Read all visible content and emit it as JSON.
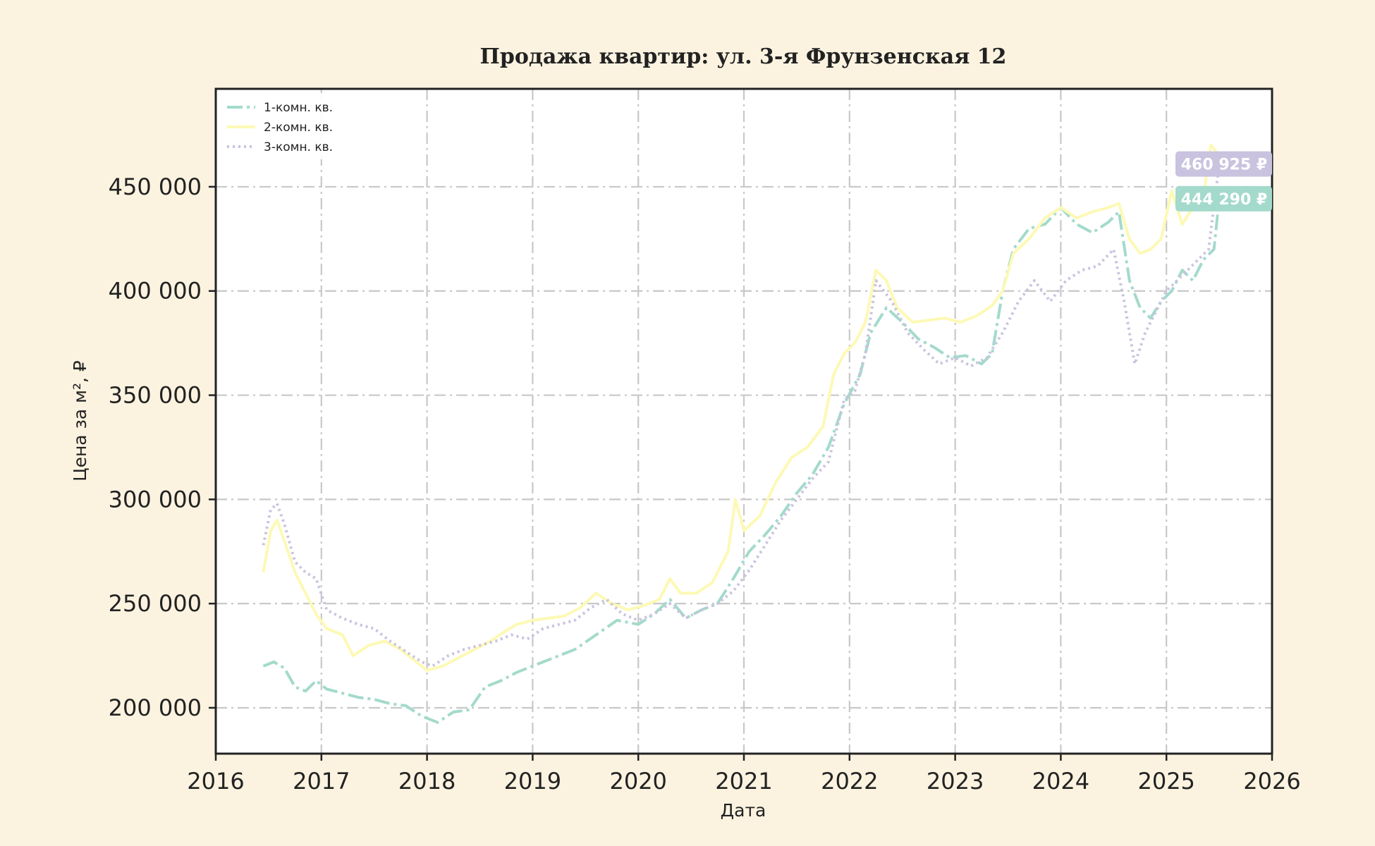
{
  "chart_data": {
    "type": "line",
    "title": "Продажа квартир: ул. 3-я Фрунзенская 12",
    "xlabel": "Дата",
    "ylabel": "Цена за м², ₽",
    "xlim": [
      2016.0,
      2026.0
    ],
    "ylim": [
      178000,
      497000
    ],
    "x_ticks": [
      2016,
      2017,
      2018,
      2019,
      2020,
      2021,
      2022,
      2023,
      2024,
      2025,
      2026
    ],
    "x_tick_labels": [
      "2016",
      "2017",
      "2018",
      "2019",
      "2020",
      "2021",
      "2022",
      "2023",
      "2024",
      "2025",
      "2026"
    ],
    "y_ticks": [
      200000,
      250000,
      300000,
      350000,
      400000,
      450000
    ],
    "y_tick_labels": [
      "200 000",
      "250 000",
      "300 000",
      "350 000",
      "400 000",
      "450 000"
    ],
    "grid": true,
    "legend_position": "top-left",
    "series": [
      {
        "name": "1-комн. кв.",
        "color": "#a3dacb",
        "dash": "dashdot",
        "x": [
          2016.45,
          2016.55,
          2016.65,
          2016.75,
          2016.85,
          2016.95,
          2017.05,
          2017.2,
          2017.35,
          2017.5,
          2017.65,
          2017.8,
          2017.95,
          2018.1,
          2018.25,
          2018.4,
          2018.55,
          2018.7,
          2018.85,
          2019.0,
          2019.2,
          2019.4,
          2019.6,
          2019.8,
          2020.0,
          2020.15,
          2020.3,
          2020.45,
          2020.6,
          2020.75,
          2020.9,
          2021.05,
          2021.2,
          2021.35,
          2021.5,
          2021.65,
          2021.8,
          2021.95,
          2022.1,
          2022.2,
          2022.35,
          2022.5,
          2022.65,
          2022.8,
          2022.95,
          2023.1,
          2023.25,
          2023.35,
          2023.45,
          2023.55,
          2023.7,
          2023.85,
          2024.0,
          2024.15,
          2024.3,
          2024.45,
          2024.55,
          2024.65,
          2024.75,
          2024.85,
          2024.95,
          2025.05,
          2025.15,
          2025.25,
          2025.35,
          2025.45,
          2025.5
        ],
        "y": [
          220000,
          222000,
          219000,
          210000,
          208000,
          213000,
          209000,
          207000,
          205000,
          204000,
          202000,
          201000,
          196000,
          193000,
          198000,
          199000,
          210000,
          213000,
          217000,
          220000,
          224000,
          228000,
          235000,
          242000,
          240000,
          245000,
          252000,
          243000,
          247000,
          250000,
          262000,
          275000,
          283000,
          292000,
          303000,
          312000,
          325000,
          346000,
          360000,
          380000,
          392000,
          385000,
          377000,
          373000,
          368000,
          369000,
          365000,
          370000,
          400000,
          420000,
          430000,
          432000,
          440000,
          432000,
          428000,
          433000,
          438000,
          405000,
          392000,
          387000,
          395000,
          400000,
          410000,
          405000,
          415000,
          420000,
          444290
        ],
        "end_label": "444 290 ₽"
      },
      {
        "name": "2-комн. кв.",
        "color": "#fdf9b5",
        "dash": "solid",
        "x": [
          2016.45,
          2016.52,
          2016.58,
          2016.65,
          2016.75,
          2016.85,
          2016.95,
          2017.05,
          2017.2,
          2017.3,
          2017.45,
          2017.6,
          2017.75,
          2017.9,
          2018.0,
          2018.15,
          2018.3,
          2018.45,
          2018.6,
          2018.75,
          2018.85,
          2019.0,
          2019.15,
          2019.3,
          2019.45,
          2019.6,
          2019.75,
          2019.9,
          2020.05,
          2020.2,
          2020.3,
          2020.4,
          2020.55,
          2020.7,
          2020.85,
          2020.92,
          2021.0,
          2021.15,
          2021.3,
          2021.45,
          2021.6,
          2021.75,
          2021.85,
          2021.95,
          2022.05,
          2022.15,
          2022.25,
          2022.35,
          2022.45,
          2022.6,
          2022.75,
          2022.9,
          2023.05,
          2023.2,
          2023.35,
          2023.45,
          2023.55,
          2023.7,
          2023.85,
          2024.0,
          2024.15,
          2024.3,
          2024.45,
          2024.55,
          2024.65,
          2024.75,
          2024.85,
          2024.95,
          2025.05,
          2025.15,
          2025.25,
          2025.35,
          2025.42,
          2025.5
        ],
        "y": [
          265000,
          285000,
          290000,
          280000,
          265000,
          255000,
          245000,
          238000,
          235000,
          225000,
          230000,
          232000,
          228000,
          222000,
          218000,
          220000,
          224000,
          228000,
          232000,
          237000,
          240000,
          242000,
          243000,
          244000,
          248000,
          255000,
          250000,
          247000,
          249000,
          252000,
          262000,
          255000,
          255000,
          260000,
          275000,
          300000,
          285000,
          292000,
          308000,
          320000,
          325000,
          335000,
          360000,
          370000,
          375000,
          385000,
          410000,
          405000,
          392000,
          385000,
          386000,
          387000,
          385000,
          388000,
          393000,
          400000,
          418000,
          425000,
          435000,
          440000,
          435000,
          438000,
          440000,
          442000,
          425000,
          418000,
          420000,
          425000,
          448000,
          432000,
          440000,
          445000,
          470000,
          465000
        ],
        "end_label": ""
      },
      {
        "name": "3-комн. кв.",
        "color": "#c9c3df",
        "dash": "dotted",
        "x": [
          2016.45,
          2016.52,
          2016.58,
          2016.65,
          2016.75,
          2016.85,
          2016.95,
          2017.05,
          2017.2,
          2017.35,
          2017.5,
          2017.65,
          2017.8,
          2017.95,
          2018.05,
          2018.2,
          2018.35,
          2018.5,
          2018.65,
          2018.8,
          2018.95,
          2019.1,
          2019.25,
          2019.4,
          2019.55,
          2019.7,
          2019.85,
          2020.0,
          2020.15,
          2020.3,
          2020.45,
          2020.6,
          2020.75,
          2020.9,
          2021.05,
          2021.2,
          2021.35,
          2021.5,
          2021.65,
          2021.8,
          2021.95,
          2022.05,
          2022.15,
          2022.25,
          2022.4,
          2022.55,
          2022.7,
          2022.85,
          2023.0,
          2023.15,
          2023.3,
          2023.45,
          2023.6,
          2023.75,
          2023.9,
          2024.05,
          2024.2,
          2024.35,
          2024.5,
          2024.6,
          2024.7,
          2024.8,
          2024.9,
          2025.0,
          2025.1,
          2025.2,
          2025.3,
          2025.4,
          2025.5
        ],
        "y": [
          278000,
          295000,
          298000,
          288000,
          270000,
          265000,
          262000,
          247000,
          243000,
          240000,
          238000,
          232000,
          227000,
          222000,
          220000,
          225000,
          228000,
          230000,
          232000,
          235000,
          233000,
          238000,
          240000,
          242000,
          248000,
          252000,
          245000,
          242000,
          245000,
          250000,
          243000,
          247000,
          250000,
          256000,
          266000,
          278000,
          290000,
          300000,
          310000,
          318000,
          348000,
          352000,
          370000,
          405000,
          395000,
          380000,
          372000,
          365000,
          368000,
          364000,
          368000,
          380000,
          395000,
          405000,
          395000,
          405000,
          410000,
          412000,
          420000,
          395000,
          365000,
          380000,
          390000,
          400000,
          405000,
          410000,
          415000,
          420000,
          460925
        ],
        "end_label": "460 925 ₽"
      }
    ]
  }
}
